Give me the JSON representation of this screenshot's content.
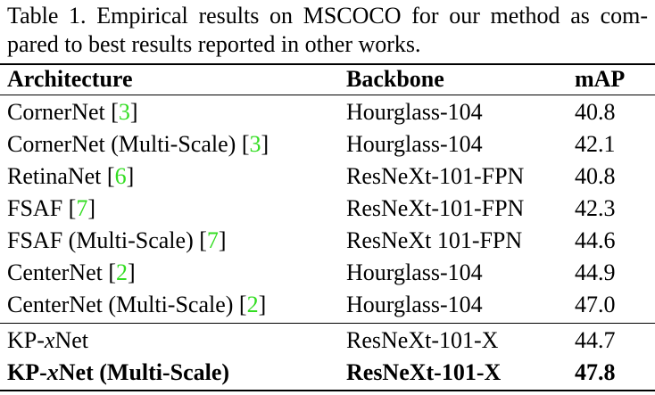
{
  "caption": {
    "line1": "Table 1. Empirical results on MSCOCO for our method as com-",
    "line2": "pared to best results reported in other works."
  },
  "colors": {
    "text": "#000000",
    "citation": "#33dd22",
    "background": "#ffffff"
  },
  "table": {
    "headers": {
      "architecture": "Architecture",
      "backbone": "Backbone",
      "map": "mAP"
    },
    "rows": [
      {
        "arch": "CornerNet",
        "arch_suffix": "",
        "cite": "3",
        "backbone": "Hourglass-104",
        "map": "40.8"
      },
      {
        "arch": "CornerNet (Multi-Scale)",
        "arch_suffix": "",
        "cite": "3",
        "backbone": "Hourglass-104",
        "map": "42.1"
      },
      {
        "arch": "RetinaNet",
        "arch_suffix": "",
        "cite": "6",
        "backbone": "ResNeXt-101-FPN",
        "map": "40.8"
      },
      {
        "arch": "FSAF",
        "arch_suffix": "",
        "cite": "7",
        "backbone": "ResNeXt-101-FPN",
        "map": "42.3"
      },
      {
        "arch": "FSAF (Multi-Scale)",
        "arch_suffix": "",
        "cite": "7",
        "backbone": "ResNeXt 101-FPN",
        "map": "44.6"
      },
      {
        "arch": "CenterNet",
        "arch_suffix": "",
        "cite": "2",
        "backbone": "Hourglass-104",
        "map": "44.9"
      },
      {
        "arch": "CenterNet (Multi-Scale)",
        "arch_suffix": "",
        "cite": "2",
        "backbone": "Hourglass-104",
        "map": "47.0"
      }
    ],
    "ours": [
      {
        "arch_prefix": "KP-",
        "arch_var": "x",
        "arch_suffix": "Net",
        "backbone": "ResNeXt-101-X",
        "map": "44.7"
      },
      {
        "arch_prefix": "KP-",
        "arch_var": "x",
        "arch_suffix": "Net (Multi-Scale)",
        "backbone": "ResNeXt-101-X",
        "map": "47.8"
      }
    ]
  }
}
